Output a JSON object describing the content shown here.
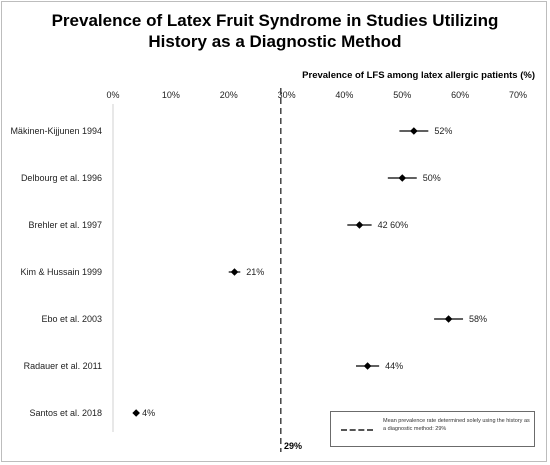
{
  "chart_data": {
    "type": "scatter",
    "title_lines": [
      "Prevalence of Latex Fruit Syndrome in Studies Utilizing",
      "History as a Diagnostic Method"
    ],
    "ylabel": "Prevalence of LFS among latex allergic patients (%)",
    "xlim": [
      0,
      70
    ],
    "ticks": [
      "0%",
      "10%",
      "20%",
      "30%",
      "40%",
      "50%",
      "60%",
      "70%"
    ],
    "studies": [
      {
        "name": "Mäkinen-Kijjunen 1994",
        "value": 52,
        "err_low": 49.5,
        "err_high": 54.5,
        "label": "52%"
      },
      {
        "name": "Delbourg et al. 1996",
        "value": 50,
        "err_low": 47.5,
        "err_high": 52.5,
        "label": "50%"
      },
      {
        "name": "Brehler et al. 1997",
        "value": 42.6,
        "err_low": 40.5,
        "err_high": 44.7,
        "label": "42 60%"
      },
      {
        "name": "Kim & Hussain 1999",
        "value": 21,
        "err_low": 20,
        "err_high": 22,
        "label": "21%"
      },
      {
        "name": "Ebo et al. 2003",
        "value": 58,
        "err_low": 55.5,
        "err_high": 60.5,
        "label": "58%"
      },
      {
        "name": "Radauer et al. 2011",
        "value": 44,
        "err_low": 42,
        "err_high": 46,
        "label": "44%"
      },
      {
        "name": "Santos et al. 2018",
        "value": 4,
        "err_low": 4,
        "err_high": 4,
        "label": "4%"
      }
    ],
    "mean": {
      "value": 29,
      "label": "29%"
    },
    "legend": "Mean prevalence rate determined solely using the history as a diagnostic method: 29%"
  }
}
